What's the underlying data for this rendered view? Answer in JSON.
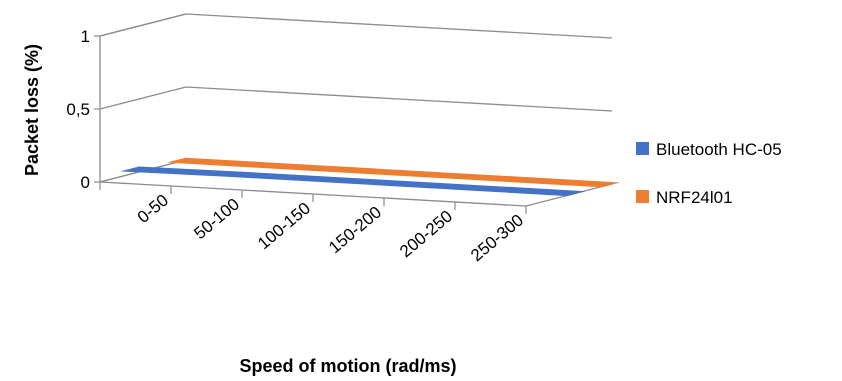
{
  "chart_data": {
    "type": "line",
    "title": "",
    "xlabel": "Speed of motion (rad/ms)",
    "ylabel": "Packet loss (%)",
    "categories": [
      "0-50",
      "50-100",
      "100-150",
      "150-200",
      "200-250",
      "250-300"
    ],
    "y_ticks": [
      "0",
      "0,5",
      "1"
    ],
    "ylim": [
      0,
      1
    ],
    "grid": true,
    "legend_position": "right",
    "series": [
      {
        "name": "Bluetooth HC-05",
        "values": [
          0,
          0,
          0,
          0,
          0,
          0
        ],
        "color": "#4472C4"
      },
      {
        "name": "NRF24l01",
        "values": [
          0,
          0,
          0,
          0,
          0,
          0
        ],
        "color": "#ED7D31"
      }
    ]
  }
}
